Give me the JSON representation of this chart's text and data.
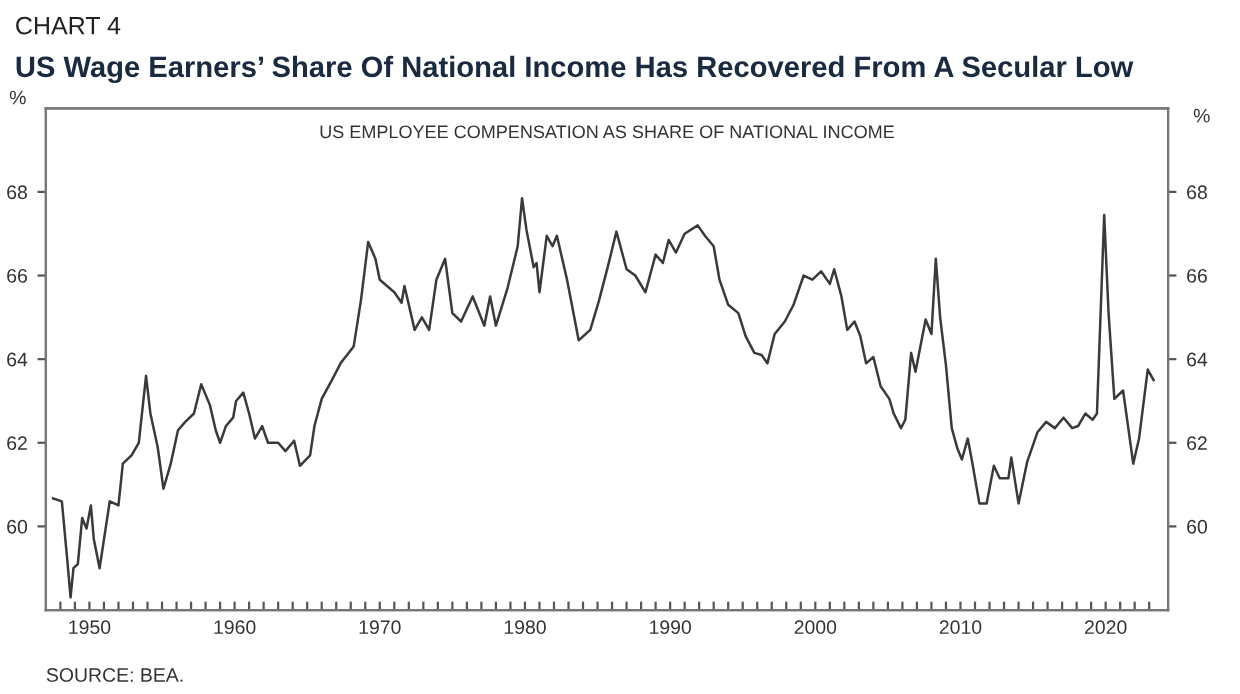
{
  "chart_data": {
    "type": "line",
    "subtitle": "CHART 4",
    "title": "US Wage Earners’ Share Of National Income Has Recovered From A Secular Low",
    "ylabel": "%",
    "y2label": "%",
    "annotations": [
      "US EMPLOYEE COMPENSATION AS SHARE OF NATIONAL INCOME",
      "SOURCE: BEA."
    ],
    "series": [
      {
        "color": "#3a3a3a",
        "x": [
          1947.5,
          1948.1,
          1948.5,
          1948.7,
          1948.9,
          1949.2,
          1949.5,
          1949.8,
          1950.1,
          1950.3,
          1950.7,
          1951.4,
          1952.0,
          1952.3,
          1952.9,
          1953.4,
          1953.9,
          1954.2,
          1954.7,
          1955.1,
          1955.6,
          1956.1,
          1956.6,
          1957.2,
          1957.7,
          1958.3,
          1958.7,
          1959.0,
          1959.4,
          1959.9,
          1960.1,
          1960.6,
          1961.0,
          1961.4,
          1961.9,
          1962.3,
          1963.0,
          1963.5,
          1964.1,
          1964.5,
          1965.2,
          1965.5,
          1966.0,
          1966.7,
          1967.3,
          1968.2,
          1968.7,
          1969.2,
          1969.7,
          1970.0,
          1971.0,
          1971.5,
          1971.7,
          1972.4,
          1972.9,
          1973.4,
          1973.9,
          1974.5,
          1975.0,
          1975.6,
          1976.4,
          1977.2,
          1977.6,
          1978.0,
          1978.8,
          1979.5,
          1979.8,
          1980.1,
          1980.6,
          1980.8,
          1981.0,
          1981.5,
          1981.9,
          1982.2,
          1982.9,
          1983.7,
          1984.5,
          1985.1,
          1985.7,
          1986.3,
          1987.0,
          1987.6,
          1988.3,
          1989.0,
          1989.5,
          1989.9,
          1990.4,
          1991.0,
          1991.9,
          1992.4,
          1993.0,
          1993.4,
          1994.0,
          1994.7,
          1995.2,
          1995.8,
          1996.3,
          1996.7,
          1997.2,
          1997.9,
          1998.5,
          1999.2,
          1999.8,
          2000.4,
          2001.0,
          2001.3,
          2001.8,
          2002.2,
          2002.7,
          2003.1,
          2003.5,
          2004.0,
          2004.5,
          2005.1,
          2005.4,
          2005.9,
          2006.2,
          2006.6,
          2006.9,
          2007.6,
          2008.0,
          2008.3,
          2008.6,
          2009.0,
          2009.4,
          2009.8,
          2010.1,
          2010.5,
          2010.8,
          2011.3,
          2011.8,
          2012.3,
          2012.7,
          2013.3,
          2013.5,
          2014.0,
          2014.6,
          2015.3,
          2015.9,
          2016.5,
          2017.1,
          2017.7,
          2018.1,
          2018.6,
          2019.1,
          2019.4,
          2019.9,
          2020.2,
          2020.6,
          2021.2,
          2021.9,
          2022.3,
          2022.9,
          2023.3
        ],
        "values": [
          60.67,
          60.6,
          59.1,
          58.3,
          59.0,
          59.1,
          60.2,
          59.95,
          60.5,
          59.7,
          59.0,
          60.6,
          60.5,
          61.5,
          61.7,
          62.0,
          63.6,
          62.7,
          61.9,
          60.9,
          61.5,
          62.3,
          62.5,
          62.7,
          63.4,
          62.9,
          62.3,
          62.0,
          62.4,
          62.6,
          63.0,
          63.2,
          62.7,
          62.1,
          62.4,
          62.0,
          62.0,
          61.8,
          62.05,
          61.45,
          61.7,
          62.4,
          63.05,
          63.5,
          63.9,
          64.3,
          65.4,
          66.8,
          66.4,
          65.9,
          65.6,
          65.35,
          65.75,
          64.7,
          65.0,
          64.7,
          65.9,
          66.4,
          65.1,
          64.9,
          65.5,
          64.8,
          65.5,
          64.8,
          65.7,
          66.7,
          67.85,
          67.1,
          66.2,
          66.3,
          65.6,
          66.95,
          66.7,
          66.95,
          65.9,
          64.45,
          64.7,
          65.4,
          66.2,
          67.05,
          66.15,
          66.0,
          65.6,
          66.5,
          66.3,
          66.85,
          66.55,
          67.0,
          67.2,
          66.95,
          66.7,
          65.9,
          65.3,
          65.1,
          64.55,
          64.15,
          64.1,
          63.9,
          64.6,
          64.9,
          65.3,
          66.0,
          65.9,
          66.1,
          65.8,
          66.15,
          65.5,
          64.7,
          64.9,
          64.55,
          63.9,
          64.05,
          63.35,
          63.05,
          62.7,
          62.35,
          62.55,
          64.15,
          63.7,
          64.95,
          64.6,
          66.4,
          65.0,
          63.85,
          62.35,
          61.85,
          61.6,
          62.1,
          61.55,
          60.55,
          60.55,
          61.45,
          61.15,
          61.15,
          61.65,
          60.55,
          61.55,
          62.25,
          62.5,
          62.35,
          62.6,
          62.35,
          62.4,
          62.7,
          62.55,
          62.7,
          67.45,
          65.1,
          63.05,
          63.25,
          61.5,
          62.1,
          63.75,
          63.5
        ]
      }
    ],
    "xlim": [
      1947,
      2024.3
    ],
    "xticks": [
      {
        "value": 1948,
        "label": null
      },
      {
        "value": 1949,
        "label": null
      },
      1950,
      {
        "value": 1951,
        "label": null
      },
      {
        "value": 1952,
        "label": null
      },
      {
        "value": 1953,
        "label": null
      },
      {
        "value": 1954,
        "label": null
      },
      {
        "value": 1955,
        "label": null
      },
      {
        "value": 1956,
        "label": null
      },
      {
        "value": 1957,
        "label": null
      },
      {
        "value": 1958,
        "label": null
      },
      {
        "value": 1959,
        "label": null
      },
      1960,
      {
        "value": 1961,
        "label": null
      },
      {
        "value": 1962,
        "label": null
      },
      {
        "value": 1963,
        "label": null
      },
      {
        "value": 1964,
        "label": null
      },
      {
        "value": 1965,
        "label": null
      },
      {
        "value": 1966,
        "label": null
      },
      {
        "value": 1967,
        "label": null
      },
      {
        "value": 1968,
        "label": null
      },
      {
        "value": 1969,
        "label": null
      },
      1970,
      {
        "value": 1971,
        "label": null
      },
      {
        "value": 1972,
        "label": null
      },
      {
        "value": 1973,
        "label": null
      },
      {
        "value": 1974,
        "label": null
      },
      {
        "value": 1975,
        "label": null
      },
      {
        "value": 1976,
        "label": null
      },
      {
        "value": 1977,
        "label": null
      },
      {
        "value": 1978,
        "label": null
      },
      {
        "value": 1979,
        "label": null
      },
      1980,
      {
        "value": 1981,
        "label": null
      },
      {
        "value": 1982,
        "label": null
      },
      {
        "value": 1983,
        "label": null
      },
      {
        "value": 1984,
        "label": null
      },
      {
        "value": 1985,
        "label": null
      },
      {
        "value": 1986,
        "label": null
      },
      {
        "value": 1987,
        "label": null
      },
      {
        "value": 1988,
        "label": null
      },
      {
        "value": 1989,
        "label": null
      },
      1990,
      {
        "value": 1991,
        "label": null
      },
      {
        "value": 1992,
        "label": null
      },
      {
        "value": 1993,
        "label": null
      },
      {
        "value": 1994,
        "label": null
      },
      {
        "value": 1995,
        "label": null
      },
      {
        "value": 1996,
        "label": null
      },
      {
        "value": 1997,
        "label": null
      },
      {
        "value": 1998,
        "label": null
      },
      {
        "value": 1999,
        "label": null
      },
      2000,
      {
        "value": 2001,
        "label": null
      },
      {
        "value": 2002,
        "label": null
      },
      {
        "value": 2003,
        "label": null
      },
      {
        "value": 2004,
        "label": null
      },
      {
        "value": 2005,
        "label": null
      },
      {
        "value": 2006,
        "label": null
      },
      {
        "value": 2007,
        "label": null
      },
      {
        "value": 2008,
        "label": null
      },
      {
        "value": 2009,
        "label": null
      },
      2010,
      {
        "value": 2011,
        "label": null
      },
      {
        "value": 2012,
        "label": null
      },
      {
        "value": 2013,
        "label": null
      },
      {
        "value": 2014,
        "label": null
      },
      {
        "value": 2015,
        "label": null
      },
      {
        "value": 2016,
        "label": null
      },
      {
        "value": 2017,
        "label": null
      },
      {
        "value": 2018,
        "label": null
      },
      {
        "value": 2019,
        "label": null
      },
      2020,
      {
        "value": 2021,
        "label": null
      },
      {
        "value": 2022,
        "label": null
      },
      {
        "value": 2023,
        "label": null
      }
    ],
    "ylim": [
      58,
      70
    ],
    "yticks": [
      60,
      62,
      64,
      66,
      68
    ],
    "y2lim": [
      58,
      70
    ],
    "y2ticks": [
      60,
      62,
      64,
      66,
      68
    ]
  }
}
